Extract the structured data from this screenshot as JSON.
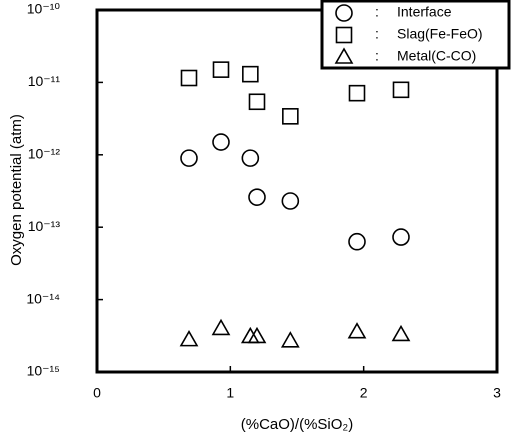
{
  "chart_data": {
    "type": "scatter",
    "x_label": "(%CaO)/(%SiO₂)",
    "y_label": "Oxygen potential (atm)",
    "xlim": [
      0,
      3
    ],
    "xticks": [
      0,
      1,
      2,
      3
    ],
    "ylim": [
      1e-15,
      1e-10
    ],
    "log_y": true,
    "yticks": [
      {
        "value": 1e-10,
        "label": "10⁻¹⁰"
      },
      {
        "value": 1e-11,
        "label": "10⁻¹¹"
      },
      {
        "value": 1e-12,
        "label": "10⁻¹²"
      },
      {
        "value": 1e-13,
        "label": "10⁻¹³"
      },
      {
        "value": 1e-14,
        "label": "10⁻¹⁴"
      },
      {
        "value": 1e-15,
        "label": "10⁻¹⁵"
      }
    ],
    "grid": false,
    "legend": "top-right",
    "legend_separator": ":",
    "series": [
      {
        "name": "Interface",
        "color": "#000000",
        "marker": "circle",
        "x": [
          0.69,
          0.93,
          1.15,
          1.2,
          1.45,
          1.95,
          2.28
        ],
        "values": [
          9e-13,
          1.5e-12,
          9e-13,
          2.6e-13,
          2.3e-13,
          6.3e-14,
          7.3e-14
        ]
      },
      {
        "name": "Slag(Fe-FeO)",
        "color": "#000000",
        "marker": "square",
        "x": [
          0.69,
          0.93,
          1.15,
          1.2,
          1.45,
          1.95,
          2.28
        ],
        "values": [
          1.15e-11,
          1.5e-11,
          1.3e-11,
          5.4e-12,
          3.4e-12,
          7.1e-12,
          7.9e-12
        ]
      },
      {
        "name": "Metal(C-CO)",
        "color": "#000000",
        "marker": "triangle",
        "x": [
          0.69,
          0.93,
          1.15,
          1.2,
          1.45,
          1.95,
          2.28
        ],
        "values": [
          2.8e-15,
          4e-15,
          3.1e-15,
          3.1e-15,
          2.7e-15,
          3.6e-15,
          3.3e-15
        ]
      }
    ]
  }
}
